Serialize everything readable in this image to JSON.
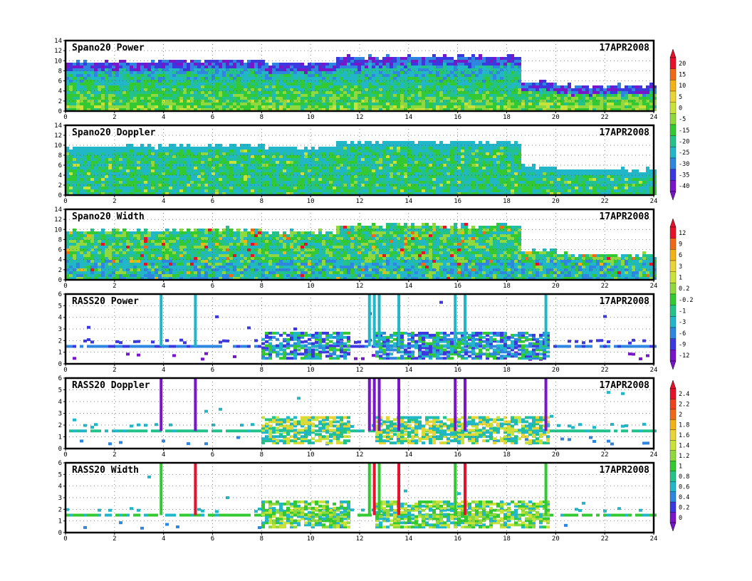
{
  "figure": {
    "date": "17APR2008",
    "x_ticks": [
      "0",
      "2",
      "4",
      "6",
      "8",
      "10",
      "12",
      "14",
      "16",
      "18",
      "20",
      "22",
      "24"
    ]
  },
  "colorbars": [
    {
      "id": "power",
      "labels": [
        "20",
        "15",
        "10",
        "5",
        "0",
        "-5",
        "-15",
        "-20",
        "-25",
        "-30",
        "-35",
        "-40"
      ],
      "colors": [
        "#e8112c",
        "#f06a16",
        "#f2b317",
        "#e9d438",
        "#c9e23a",
        "#8fd83d",
        "#33c933",
        "#22c28a",
        "#22b7c8",
        "#2e86e0",
        "#3c38e0",
        "#7a16c9"
      ]
    },
    {
      "id": "width",
      "labels": [
        "12",
        "9",
        "6",
        "3",
        "1",
        "0.2",
        "-0.2",
        "-1",
        "-3",
        "-6",
        "-9",
        "-12"
      ],
      "colors": [
        "#e8112c",
        "#f06a16",
        "#f2b317",
        "#e9d438",
        "#c9e23a",
        "#8fd83d",
        "#33c933",
        "#22c28a",
        "#22b7c8",
        "#2e86e0",
        "#3c38e0",
        "#7a16c9"
      ]
    },
    {
      "id": "rass",
      "labels": [
        "2.4",
        "2.2",
        "2",
        "1.8",
        "1.6",
        "1.4",
        "1.2",
        "1",
        "0.8",
        "0.6",
        "0.4",
        "0.2",
        "0"
      ],
      "colors": [
        "#e8112c",
        "#f0421b",
        "#f06a16",
        "#f2b317",
        "#e9d438",
        "#c9e23a",
        "#8fd83d",
        "#33c933",
        "#22c28a",
        "#22b7c8",
        "#2e86e0",
        "#3c38e0",
        "#7a16c9"
      ]
    }
  ],
  "chart_data": [
    {
      "type": "heatmap",
      "title": "Spano20  Power",
      "date": "17APR2008",
      "xlim": [
        0,
        24
      ],
      "ylim": [
        0,
        14
      ],
      "x_ticks": [
        0,
        2,
        4,
        6,
        8,
        10,
        12,
        14,
        16,
        18,
        20,
        22,
        24
      ],
      "y_ticks": [
        0,
        2,
        4,
        6,
        8,
        10,
        12,
        14
      ],
      "colorbar": "power",
      "grid": true,
      "top_height_segments": [
        [
          0,
          4,
          9.5
        ],
        [
          4,
          8,
          9.8
        ],
        [
          8,
          11,
          9.3
        ],
        [
          11,
          18.5,
          10.5
        ],
        [
          18.5,
          20,
          5.5
        ],
        [
          20,
          24,
          4.8
        ]
      ],
      "approx_value_range": [
        -40,
        20
      ]
    },
    {
      "type": "heatmap",
      "title": "Spano20  Doppler",
      "date": "17APR2008",
      "xlim": [
        0,
        24
      ],
      "ylim": [
        0,
        14
      ],
      "x_ticks": [
        0,
        2,
        4,
        6,
        8,
        10,
        12,
        14,
        16,
        18,
        20,
        22,
        24
      ],
      "y_ticks": [
        0,
        2,
        4,
        6,
        8,
        10,
        12,
        14
      ],
      "colorbar": "power",
      "grid": true,
      "top_height_segments": [
        [
          0,
          4,
          9.5
        ],
        [
          4,
          8,
          9.8
        ],
        [
          8,
          11,
          9.3
        ],
        [
          11,
          18.5,
          10.5
        ],
        [
          18.5,
          20,
          5.5
        ],
        [
          20,
          24,
          4.8
        ]
      ]
    },
    {
      "type": "heatmap",
      "title": "Spano20  Width",
      "date": "17APR2008",
      "xlim": [
        0,
        24
      ],
      "ylim": [
        0,
        14
      ],
      "x_ticks": [
        0,
        2,
        4,
        6,
        8,
        10,
        12,
        14,
        16,
        18,
        20,
        22,
        24
      ],
      "y_ticks": [
        0,
        2,
        4,
        6,
        8,
        10,
        12,
        14
      ],
      "colorbar": "width",
      "grid": true,
      "top_height_segments": [
        [
          0,
          4,
          9.5
        ],
        [
          4,
          8,
          9.8
        ],
        [
          8,
          11,
          9.3
        ],
        [
          11,
          18.5,
          10.5
        ],
        [
          18.5,
          20,
          5.5
        ],
        [
          20,
          24,
          4.8
        ]
      ]
    },
    {
      "type": "heatmap",
      "title": "RASS20  Power",
      "date": "17APR2008",
      "xlim": [
        0,
        24
      ],
      "ylim": [
        0,
        6
      ],
      "x_ticks": [
        0,
        2,
        4,
        6,
        8,
        10,
        12,
        14,
        16,
        18,
        20,
        22,
        24
      ],
      "y_ticks": [
        0,
        1,
        2,
        3,
        4,
        5,
        6
      ],
      "colorbar": "width",
      "grid": true,
      "baseline_height": 1.5,
      "dense_intervals": [
        [
          7.9,
          11.6
        ],
        [
          12.5,
          19.7
        ]
      ],
      "vertical_spikes": [
        3.9,
        5.3,
        12.4,
        12.6,
        12.8,
        13.6,
        15.9,
        16.3,
        19.6
      ]
    },
    {
      "type": "heatmap",
      "title": "RASS20  Doppler",
      "date": "17APR2008",
      "xlim": [
        0,
        24
      ],
      "ylim": [
        0,
        6
      ],
      "x_ticks": [
        0,
        2,
        4,
        6,
        8,
        10,
        12,
        14,
        16,
        18,
        20,
        22,
        24
      ],
      "y_ticks": [
        0,
        1,
        2,
        3,
        4,
        5,
        6
      ],
      "colorbar": "rass",
      "grid": true,
      "baseline_height": 1.5,
      "dense_intervals": [
        [
          7.9,
          11.6
        ],
        [
          12.5,
          19.7
        ]
      ],
      "vertical_spikes": [
        3.9,
        5.3,
        12.4,
        12.6,
        12.8,
        13.6,
        15.9,
        16.3,
        19.6
      ]
    },
    {
      "type": "heatmap",
      "title": "RASS20  Width",
      "date": "17APR2008",
      "xlim": [
        0,
        24
      ],
      "ylim": [
        0,
        6
      ],
      "x_ticks": [
        0,
        2,
        4,
        6,
        8,
        10,
        12,
        14,
        16,
        18,
        20,
        22,
        24
      ],
      "y_ticks": [
        0,
        1,
        2,
        3,
        4,
        5,
        6
      ],
      "colorbar": "width",
      "grid": true,
      "baseline_height": 1.5,
      "dense_intervals": [
        [
          7.9,
          11.6
        ],
        [
          12.5,
          19.7
        ]
      ],
      "vertical_spikes": [
        3.9,
        5.3,
        12.4,
        12.6,
        12.8,
        13.6,
        15.9,
        16.3,
        19.6
      ]
    }
  ]
}
